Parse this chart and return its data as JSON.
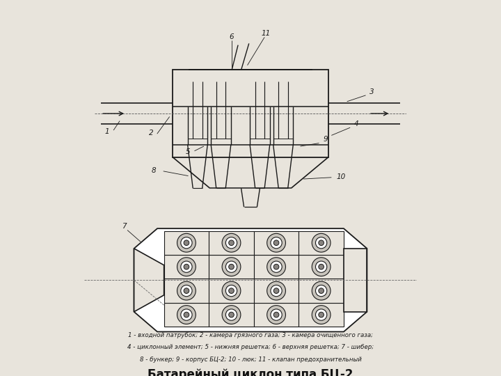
{
  "title": "Батарейный циклон типа БЦ-2",
  "legend_line1": "1 - входной патрубок; 2 - камера грязного газа; 3 - камера очищенного газа;",
  "legend_line2": "4 - циклонный элемент; 5 - нижняя решетка; 6 - верхняя решетка; 7 - шибер;",
  "legend_line3": "8 - бункер; 9 - корпус БЦ-2; 10 - люк; 11 - клапан предохранительный",
  "bg_color": "#e8e4dc",
  "line_color": "#1a1a1a",
  "label_6": "6",
  "label_11": "11",
  "label_1": "1",
  "label_2": "2",
  "label_3": "3",
  "label_4": "4",
  "label_5": "5",
  "label_7": "7",
  "label_8": "8",
  "label_9": "9",
  "label_10": "10"
}
